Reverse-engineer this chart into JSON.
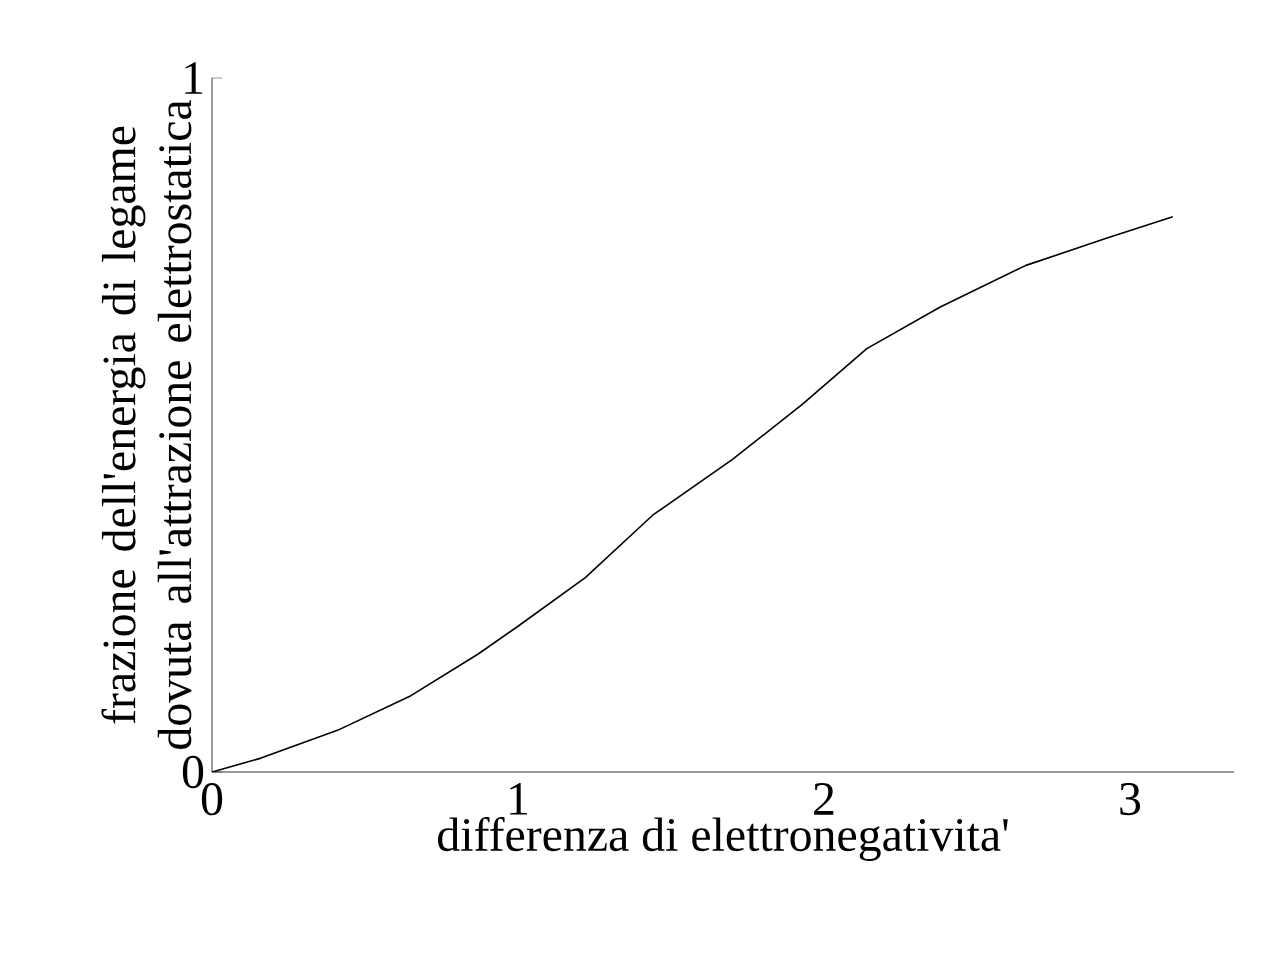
{
  "chart_data": {
    "type": "line",
    "xlabel": "differenza di elettronegativita'",
    "ylabel": "frazione dell'energia di legame dovuta all'attrazione elettrostatica",
    "x": [
      0,
      0.16,
      0.41,
      0.65,
      0.87,
      1.0,
      1.22,
      1.44,
      1.7,
      1.93,
      2.14,
      2.38,
      2.66,
      2.93,
      3.14
    ],
    "series": [
      {
        "color": "#000000",
        "values": [
          0,
          0.02,
          0.06,
          0.11,
          0.17,
          0.21,
          0.28,
          0.37,
          0.45,
          0.53,
          0.61,
          0.67,
          0.73,
          0.77,
          0.8
        ]
      }
    ],
    "xlim": [
      0,
      3.34
    ],
    "ylim": [
      0,
      1
    ],
    "xticks": [
      0,
      1,
      2,
      3
    ],
    "yticks": [
      0,
      1
    ],
    "grid": false
  }
}
